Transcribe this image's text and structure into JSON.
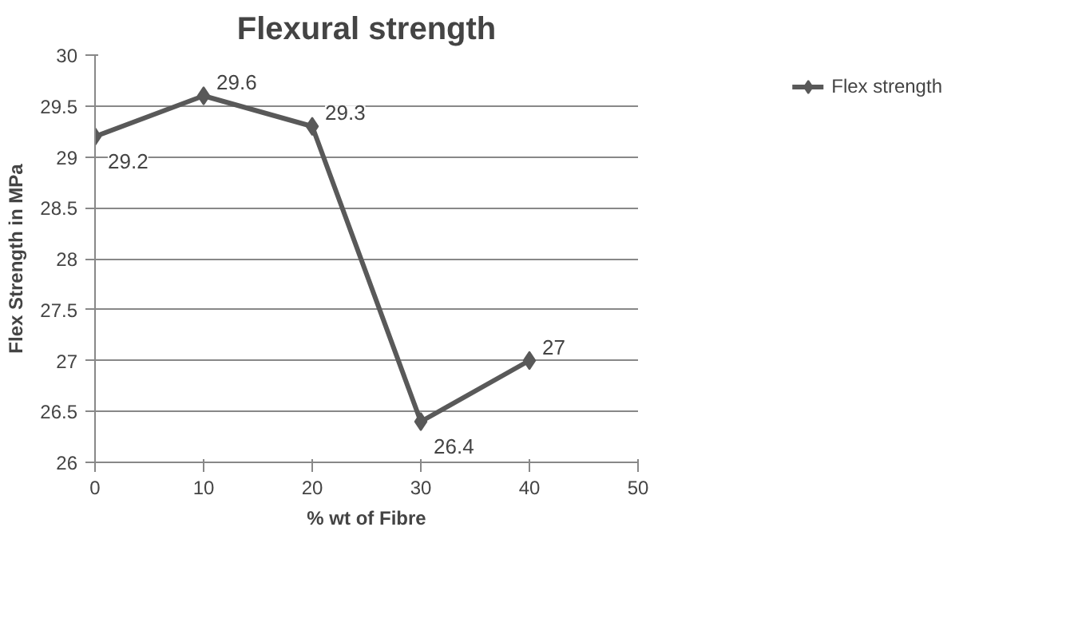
{
  "chart_data": {
    "type": "line",
    "title": "Flexural strength",
    "xlabel": "% wt of Fibre",
    "ylabel": "Flex Strength in MPa",
    "x": [
      0,
      10,
      20,
      30,
      40
    ],
    "series": [
      {
        "name": "Flex strength",
        "color": "#595959",
        "values": [
          29.2,
          29.6,
          29.3,
          26.4,
          27
        ]
      }
    ],
    "xlim": [
      0,
      50
    ],
    "xticks": [
      0,
      10,
      20,
      30,
      40,
      50
    ],
    "ylim": [
      26,
      30
    ],
    "yticks": [
      26,
      26.5,
      27,
      27.5,
      28,
      28.5,
      29,
      29.5,
      30
    ],
    "grid": "y",
    "legend": "right",
    "marker": "diamond",
    "line_style": "solid",
    "data_labels": true
  }
}
